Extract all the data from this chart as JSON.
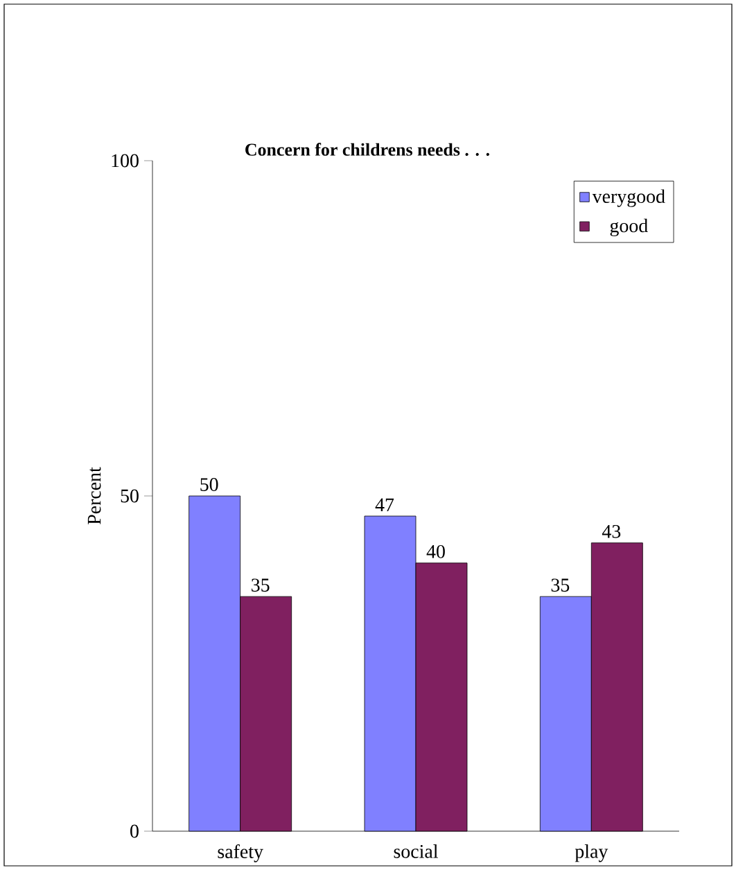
{
  "chart_data": {
    "type": "bar",
    "title": "Concern for childrens needs . . .",
    "ylabel": "Percent",
    "categories": [
      "safety",
      "social",
      "play"
    ],
    "series": [
      {
        "name": "verygood",
        "color": "#8080ff",
        "values": [
          50,
          47,
          35
        ]
      },
      {
        "name": "good",
        "color": "#802060",
        "values": [
          35,
          40,
          43
        ]
      }
    ],
    "ylim": [
      0,
      100
    ],
    "yticks": [
      0,
      50,
      100
    ],
    "grid": false,
    "legend": "top right",
    "data_labels": true
  }
}
